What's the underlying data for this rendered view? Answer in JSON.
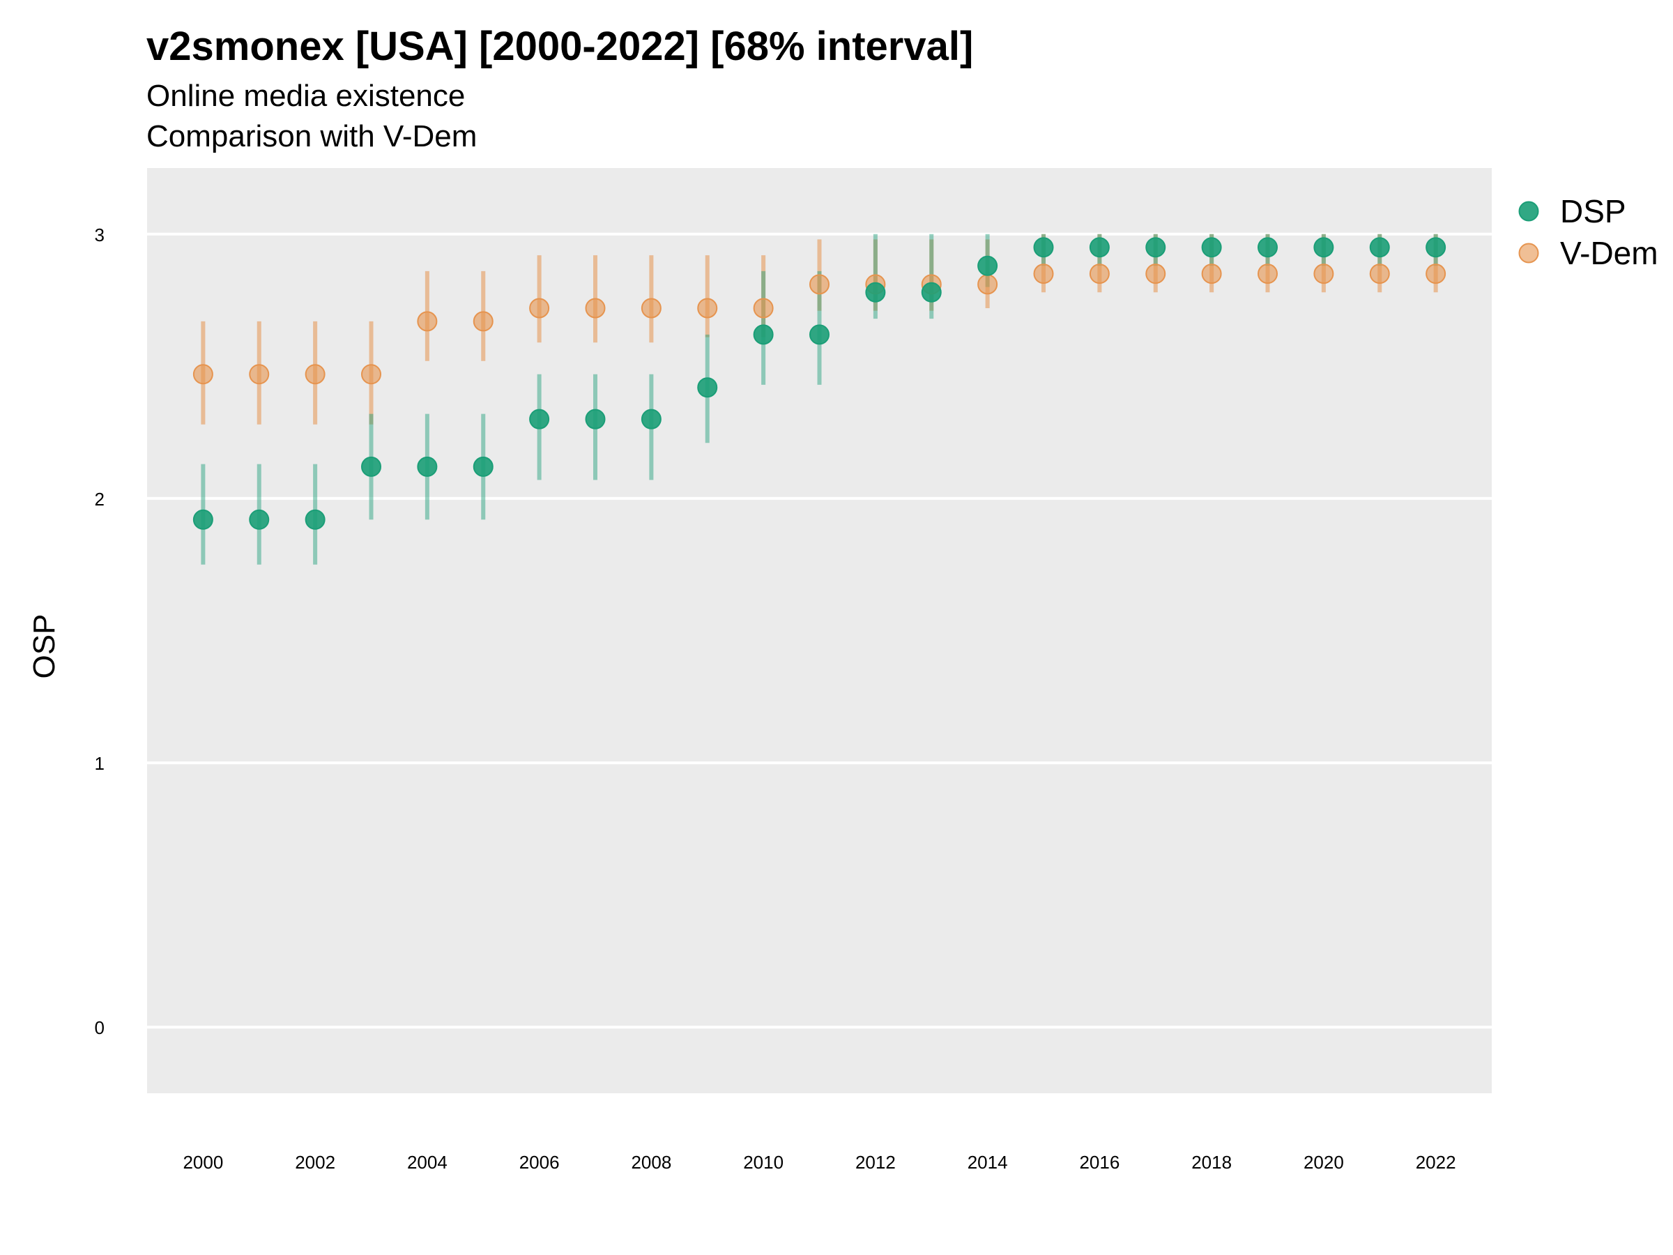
{
  "chart_data": {
    "type": "scatter",
    "title": "v2smonex [USA] [2000-2022] [68% interval]",
    "subtitle": "Online media existence",
    "subtitle2": "Comparison with V-Dem",
    "xlabel": "",
    "ylabel": "OSP",
    "x": [
      2000,
      2001,
      2002,
      2003,
      2004,
      2005,
      2006,
      2007,
      2008,
      2009,
      2010,
      2011,
      2012,
      2013,
      2014,
      2015,
      2016,
      2017,
      2018,
      2019,
      2020,
      2021,
      2022
    ],
    "xlim": [
      1999,
      2023
    ],
    "ylim": [
      -0.25,
      3.25
    ],
    "xticks": [
      2000,
      2002,
      2004,
      2006,
      2008,
      2010,
      2012,
      2014,
      2016,
      2018,
      2020,
      2022
    ],
    "xtick_labels": [
      "2000",
      "2002",
      "2004",
      "2006",
      "2008",
      "2010",
      "2012",
      "2014",
      "2016",
      "2018",
      "2020",
      "2022"
    ],
    "yticks": [
      0,
      1,
      2,
      3
    ],
    "ytick_labels": [
      "0",
      "1",
      "2",
      "3"
    ],
    "grid": true,
    "legend_position": "right",
    "series": [
      {
        "name": "DSP",
        "color": "#1b9e77",
        "values": [
          1.92,
          1.92,
          1.92,
          2.12,
          2.12,
          2.12,
          2.3,
          2.3,
          2.3,
          2.42,
          2.62,
          2.62,
          2.78,
          2.78,
          2.88,
          2.95,
          2.95,
          2.95,
          2.95,
          2.95,
          2.95,
          2.95,
          2.95
        ],
        "lower": [
          1.75,
          1.75,
          1.75,
          1.92,
          1.92,
          1.92,
          2.07,
          2.07,
          2.07,
          2.21,
          2.43,
          2.43,
          2.68,
          2.68,
          2.8,
          2.88,
          2.88,
          2.88,
          2.88,
          2.88,
          2.88,
          2.88,
          2.88
        ],
        "upper": [
          2.13,
          2.13,
          2.13,
          2.32,
          2.32,
          2.32,
          2.47,
          2.47,
          2.47,
          2.62,
          2.86,
          2.86,
          3.0,
          3.0,
          3.0,
          3.0,
          3.0,
          3.0,
          3.0,
          3.0,
          3.0,
          3.0,
          3.0
        ]
      },
      {
        "name": "V-Dem",
        "color": "#e6944f",
        "values": [
          2.47,
          2.47,
          2.47,
          2.47,
          2.67,
          2.67,
          2.72,
          2.72,
          2.72,
          2.72,
          2.72,
          2.81,
          2.81,
          2.81,
          2.81,
          2.85,
          2.85,
          2.85,
          2.85,
          2.85,
          2.85,
          2.85,
          2.85
        ],
        "lower": [
          2.28,
          2.28,
          2.28,
          2.28,
          2.52,
          2.52,
          2.59,
          2.59,
          2.59,
          2.61,
          2.61,
          2.71,
          2.71,
          2.71,
          2.72,
          2.78,
          2.78,
          2.78,
          2.78,
          2.78,
          2.78,
          2.78,
          2.78
        ],
        "upper": [
          2.67,
          2.67,
          2.67,
          2.67,
          2.86,
          2.86,
          2.92,
          2.92,
          2.92,
          2.92,
          2.92,
          2.98,
          2.98,
          2.98,
          2.98,
          3.0,
          3.0,
          3.0,
          3.0,
          3.0,
          3.0,
          3.0,
          3.0
        ]
      }
    ]
  }
}
